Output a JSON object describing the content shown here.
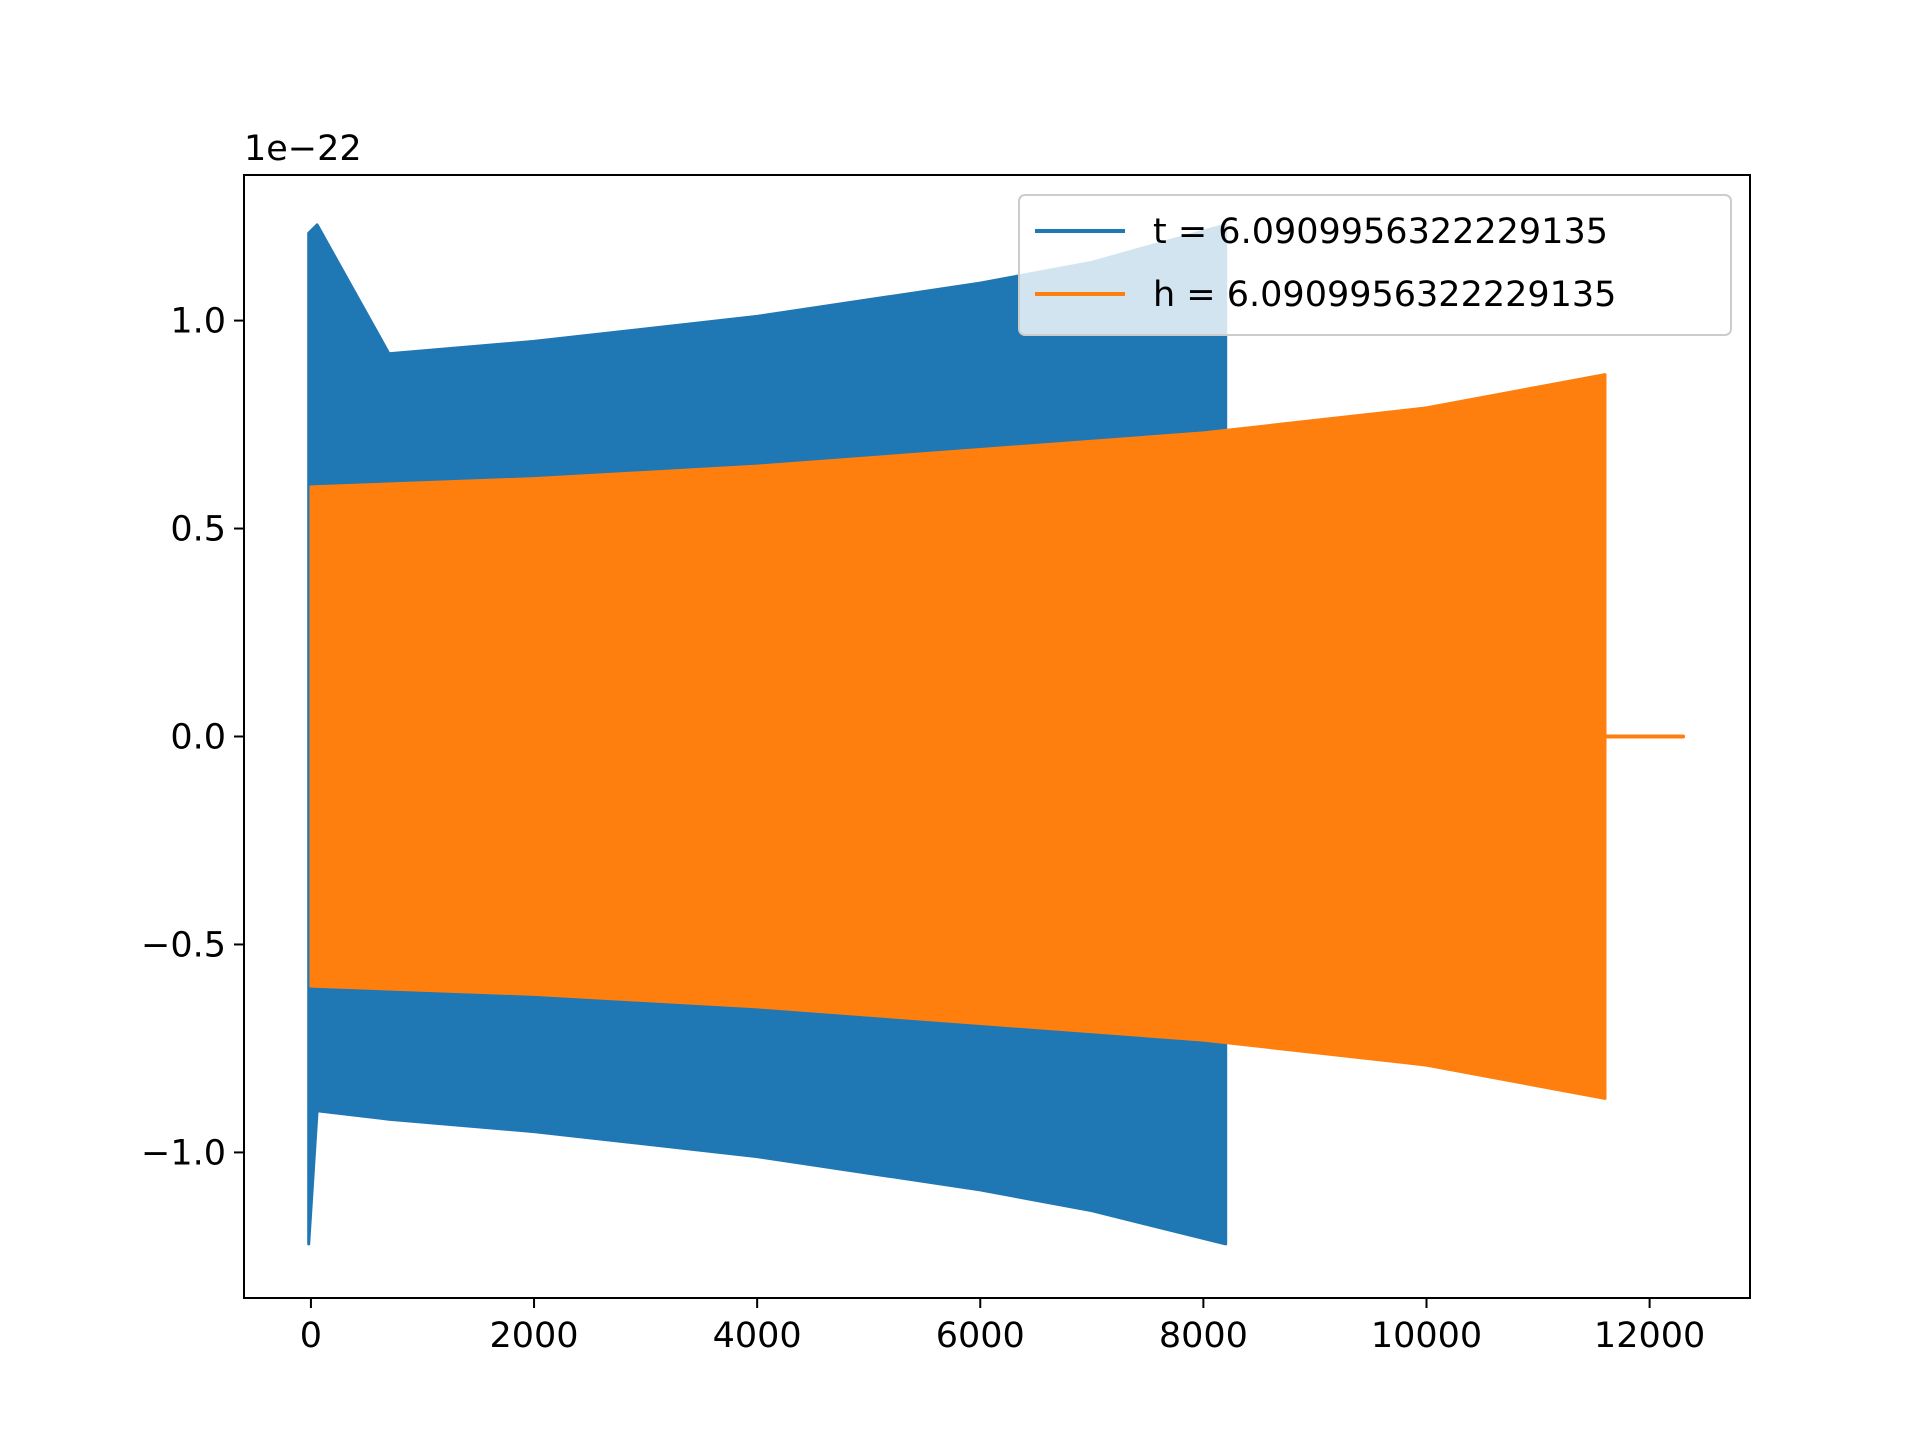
{
  "chart_data": {
    "type": "line",
    "title": "",
    "xlabel": "",
    "ylabel": "",
    "y_offset_text": "1e−22",
    "xlim": [
      -600,
      12900
    ],
    "ylim": [
      -1.35,
      1.35
    ],
    "x_ticks": [
      0,
      2000,
      4000,
      6000,
      8000,
      10000,
      12000
    ],
    "x_tick_labels": [
      "0",
      "2000",
      "4000",
      "6000",
      "8000",
      "10000",
      "12000"
    ],
    "y_ticks": [
      -1.0,
      -0.5,
      0.0,
      0.5,
      1.0
    ],
    "y_tick_labels": [
      "−1.0",
      "−0.5",
      "0.0",
      "0.5",
      "1.0"
    ],
    "grid": false,
    "legend_position": "top-right",
    "series": [
      {
        "name": "t = 6.0909956322229135",
        "color": "#1f77b4",
        "style": "dense oscillation (filled envelope)",
        "envelope": [
          {
            "x": -20,
            "upper": 1.21,
            "lower": -1.22
          },
          {
            "x": 55,
            "upper": 1.23,
            "lower": -0.9
          },
          {
            "x": 700,
            "upper": 0.92,
            "lower": -0.92
          },
          {
            "x": 2000,
            "upper": 0.95,
            "lower": -0.95
          },
          {
            "x": 4000,
            "upper": 1.01,
            "lower": -1.01
          },
          {
            "x": 6000,
            "upper": 1.09,
            "lower": -1.09
          },
          {
            "x": 7000,
            "upper": 1.14,
            "lower": -1.14
          },
          {
            "x": 8200,
            "upper": 1.23,
            "lower": -1.22
          }
        ]
      },
      {
        "name": "h = 6.0909956322229135",
        "color": "#ff7f0e",
        "style": "dense oscillation (filled envelope)",
        "envelope": [
          {
            "x": 0,
            "upper": 0.6,
            "lower": -0.6
          },
          {
            "x": 2000,
            "upper": 0.62,
            "lower": -0.62
          },
          {
            "x": 4000,
            "upper": 0.65,
            "lower": -0.65
          },
          {
            "x": 6000,
            "upper": 0.69,
            "lower": -0.69
          },
          {
            "x": 8000,
            "upper": 0.73,
            "lower": -0.73
          },
          {
            "x": 10000,
            "upper": 0.79,
            "lower": -0.79
          },
          {
            "x": 11600,
            "upper": 0.87,
            "lower": -0.87
          }
        ],
        "tail": {
          "x_start": 11600,
          "x_end": 12300,
          "y": 0.0
        }
      }
    ]
  }
}
